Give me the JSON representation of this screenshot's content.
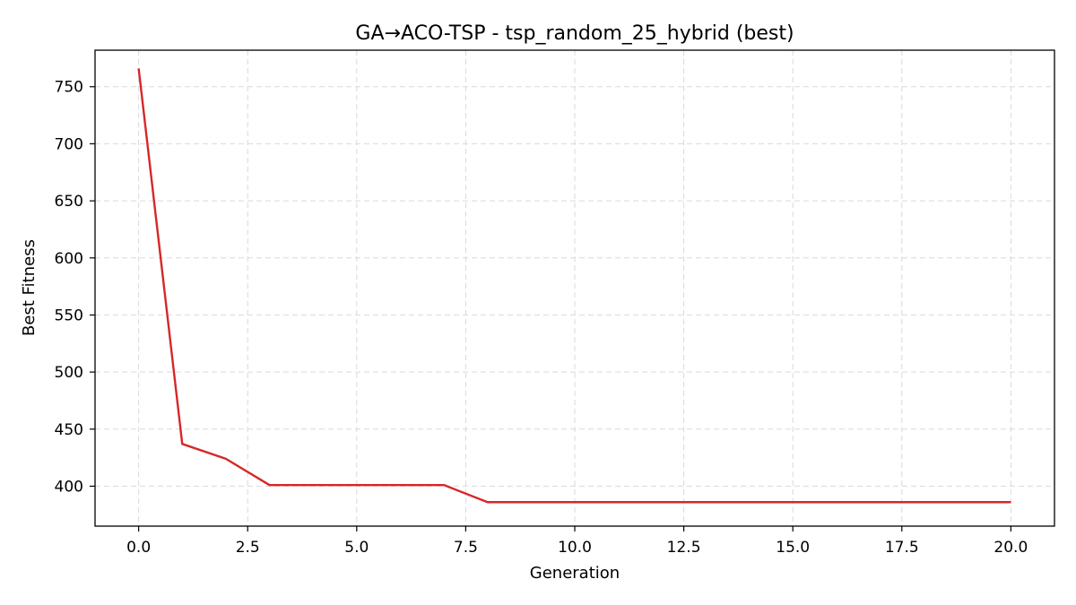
{
  "chart_data": {
    "type": "line",
    "title": "GA→ACO-TSP - tsp_random_25_hybrid (best)",
    "xlabel": "Generation",
    "ylabel": "Best Fitness",
    "xlim": [
      -1,
      21
    ],
    "ylim": [
      365,
      782
    ],
    "grid": true,
    "legend": "none",
    "x_ticks": [
      0.0,
      2.5,
      5.0,
      7.5,
      10.0,
      12.5,
      15.0,
      17.5,
      20.0
    ],
    "x_tick_labels": [
      "0.0",
      "2.5",
      "5.0",
      "7.5",
      "10.0",
      "12.5",
      "15.0",
      "17.5",
      "20.0"
    ],
    "y_ticks": [
      400,
      450,
      500,
      550,
      600,
      650,
      700,
      750
    ],
    "y_tick_labels": [
      "400",
      "450",
      "500",
      "550",
      "600",
      "650",
      "700",
      "750"
    ],
    "series": [
      {
        "color": "#d62728",
        "x": [
          0,
          1,
          2,
          3,
          4,
          5,
          6,
          7,
          8,
          9,
          10,
          11,
          12,
          13,
          14,
          15,
          16,
          17,
          18,
          19,
          20
        ],
        "y": [
          766,
          437,
          424,
          401,
          401,
          401,
          401,
          401,
          386,
          386,
          386,
          386,
          386,
          386,
          386,
          386,
          386,
          386,
          386,
          386,
          386
        ]
      }
    ]
  }
}
